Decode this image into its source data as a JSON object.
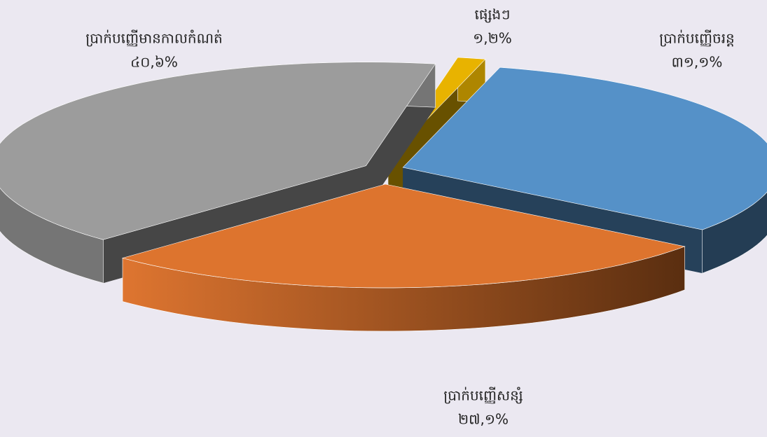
{
  "chart_data": {
    "type": "pie",
    "three_d": true,
    "categories": [
      "ប្រាក់បញ្ញើចរន្ត",
      "ប្រាក់បញ្ញើសន្សំ",
      "ប្រាក់បញ្ញើមានកាលកំណត់",
      "ផ្សេងៗ"
    ],
    "values": [
      31.1,
      27.1,
      40.6,
      1.2
    ],
    "value_labels": [
      "៣១,១%",
      "២៧,១%",
      "៤០,៦%",
      "១,២%"
    ],
    "colors": [
      "#5591c8",
      "#dd742e",
      "#9c9c9c",
      "#e8b300"
    ]
  }
}
